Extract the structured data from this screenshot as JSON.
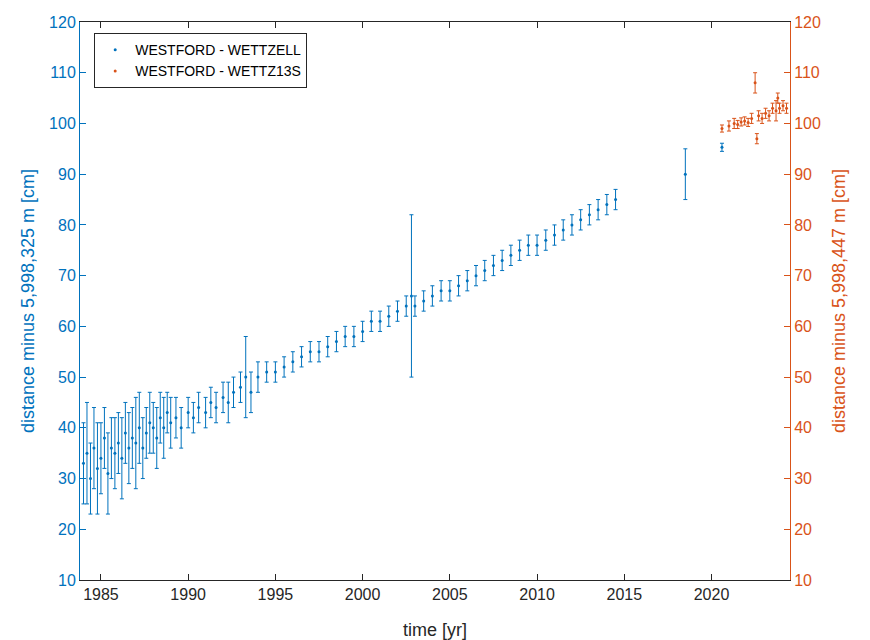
{
  "chart_data": {
    "type": "scatter",
    "x_label": "time [yr]",
    "y_label": "distance minus 5,998,325 m [cm]",
    "y2_label": "distance minus 5,998,447 m [cm]",
    "xlim": [
      1983.8,
      2024.5
    ],
    "xticks": [
      1985,
      1990,
      1995,
      2000,
      2005,
      2010,
      2015,
      2020
    ],
    "ylim": [
      10,
      120
    ],
    "yticks": [
      10,
      20,
      30,
      40,
      50,
      60,
      70,
      80,
      90,
      100,
      110,
      120
    ],
    "y2lim": [
      10,
      120
    ],
    "y2ticks": [
      10,
      20,
      30,
      40,
      50,
      60,
      70,
      80,
      90,
      100,
      110,
      120
    ],
    "grid": false,
    "legend": "upper left",
    "marker": "dot",
    "series": [
      {
        "name": "WESTFORD - WETTZELL",
        "color": "#0072bd",
        "axis": "y",
        "x": [
          1984.0,
          1984.2,
          1984.4,
          1984.6,
          1984.8,
          1985.0,
          1985.2,
          1985.4,
          1985.6,
          1985.8,
          1986.0,
          1986.2,
          1986.4,
          1986.6,
          1986.8,
          1987.0,
          1987.2,
          1987.4,
          1987.6,
          1987.8,
          1988.0,
          1988.2,
          1988.4,
          1988.6,
          1988.8,
          1989.0,
          1989.3,
          1989.6,
          1990.0,
          1990.3,
          1990.6,
          1991.0,
          1991.3,
          1991.6,
          1992.0,
          1992.3,
          1992.6,
          1993.0,
          1993.3,
          1993.6,
          1994.0,
          1994.5,
          1995.0,
          1995.5,
          1996.0,
          1996.5,
          1997.0,
          1997.5,
          1998.0,
          1998.5,
          1999.0,
          1999.5,
          2000.0,
          2000.5,
          2001.0,
          2001.5,
          2002.0,
          2002.5,
          2002.8,
          2003.0,
          2003.5,
          2004.0,
          2004.5,
          2005.0,
          2005.5,
          2006.0,
          2006.5,
          2007.0,
          2007.5,
          2008.0,
          2008.5,
          2009.0,
          2009.5,
          2010.0,
          2010.5,
          2011.0,
          2011.5,
          2012.0,
          2012.5,
          2013.0,
          2013.5,
          2014.0,
          2014.5,
          2018.5,
          2020.6
        ],
        "values": [
          33,
          35,
          30,
          36,
          32,
          34,
          38,
          31,
          36,
          35,
          37,
          34,
          39,
          36,
          38,
          37,
          40,
          36,
          39,
          41,
          40,
          38,
          42,
          40,
          43,
          41,
          42,
          40,
          43,
          42,
          44,
          43,
          45,
          44,
          46,
          45,
          47,
          48,
          50,
          47,
          50,
          51,
          51,
          52,
          53,
          54,
          55,
          55,
          56,
          57,
          58,
          58,
          59,
          61,
          61,
          62,
          63,
          64,
          66,
          64,
          65,
          66,
          67,
          67,
          68,
          69,
          70,
          71,
          72,
          73,
          74,
          75,
          76,
          76,
          77,
          78,
          79,
          80,
          81,
          82,
          83,
          84,
          85,
          90,
          95.3
        ],
        "errors": [
          8,
          10,
          7,
          8,
          9,
          7,
          6,
          8,
          6,
          7,
          6,
          8,
          6,
          7,
          6,
          9,
          7,
          6,
          5,
          6,
          5,
          6,
          5,
          6,
          4,
          5,
          4,
          4,
          3,
          3,
          3,
          3,
          3,
          3,
          3,
          4,
          3,
          3,
          8,
          4,
          3,
          2,
          2,
          2,
          2,
          2,
          2,
          2,
          2,
          2,
          2,
          2,
          2,
          2,
          2,
          2,
          2,
          2,
          16,
          2,
          2,
          2,
          2,
          2,
          2,
          2,
          2,
          2,
          2,
          2,
          2,
          2,
          2,
          2,
          2,
          2,
          2,
          2,
          2,
          2,
          2,
          2,
          2,
          5,
          0.8
        ]
      },
      {
        "name": "WESTFORD - WETTZ13S",
        "color": "#d95319",
        "axis": "y2",
        "x": [
          2020.6,
          2021.0,
          2021.3,
          2021.5,
          2021.7,
          2021.9,
          2022.1,
          2022.3,
          2022.5,
          2022.6,
          2022.7,
          2022.9,
          2023.1,
          2023.3,
          2023.5,
          2023.7,
          2023.8,
          2023.9,
          2024.1,
          2024.3
        ],
        "values": [
          99,
          99.5,
          100,
          99.8,
          100.3,
          100.5,
          100.2,
          101,
          108,
          97,
          101.5,
          101,
          102,
          101.5,
          103,
          102.5,
          105,
          103,
          103.5,
          103
        ],
        "errors": [
          0.7,
          1,
          1,
          0.8,
          0.8,
          0.8,
          0.8,
          1,
          2,
          1,
          1,
          1,
          1,
          1,
          1,
          2,
          1,
          1,
          1,
          1
        ]
      }
    ]
  }
}
